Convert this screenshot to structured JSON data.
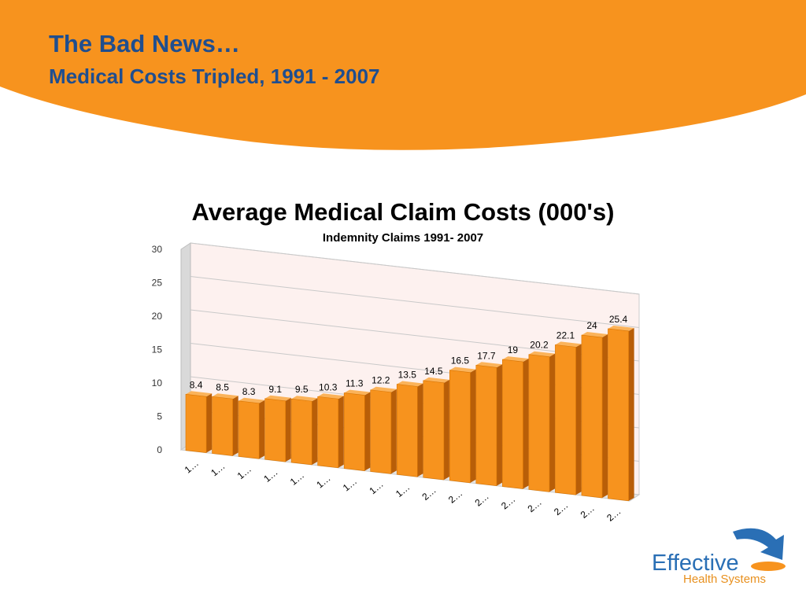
{
  "slide": {
    "title": "The Bad News…",
    "subtitle": "Medical Costs Tripled, 1991 - 2007"
  },
  "logo": {
    "name": "Effective",
    "tagline": "Health Systems"
  },
  "colors": {
    "banner": "#f7931e",
    "title_text": "#1f4e8f",
    "bar_front": "#f7931e",
    "bar_side": "#b85e08",
    "bar_top": "#fbb35a",
    "wall": "#fdf1ef",
    "floor": "#e6e6e6"
  },
  "chart_data": {
    "type": "bar",
    "title": "Average Medical Claim Costs (000's)",
    "subtitle": "Indemnity Claims 1991- 2007",
    "categories": [
      "1…",
      "1…",
      "1…",
      "1…",
      "1…",
      "1…",
      "1…",
      "1…",
      "1…",
      "2…",
      "2…",
      "2…",
      "2…",
      "2…",
      "2…",
      "2…",
      "2…"
    ],
    "values": [
      8.4,
      8.5,
      8.3,
      9.1,
      9.5,
      10.3,
      11.3,
      12.2,
      13.5,
      14.5,
      16.5,
      17.7,
      19,
      20.2,
      22.1,
      24,
      25.4
    ],
    "y_ticks": [
      0,
      5,
      10,
      15,
      20,
      25,
      30
    ],
    "ylim": [
      0,
      30
    ],
    "grid": true,
    "style": "3d-bar"
  }
}
